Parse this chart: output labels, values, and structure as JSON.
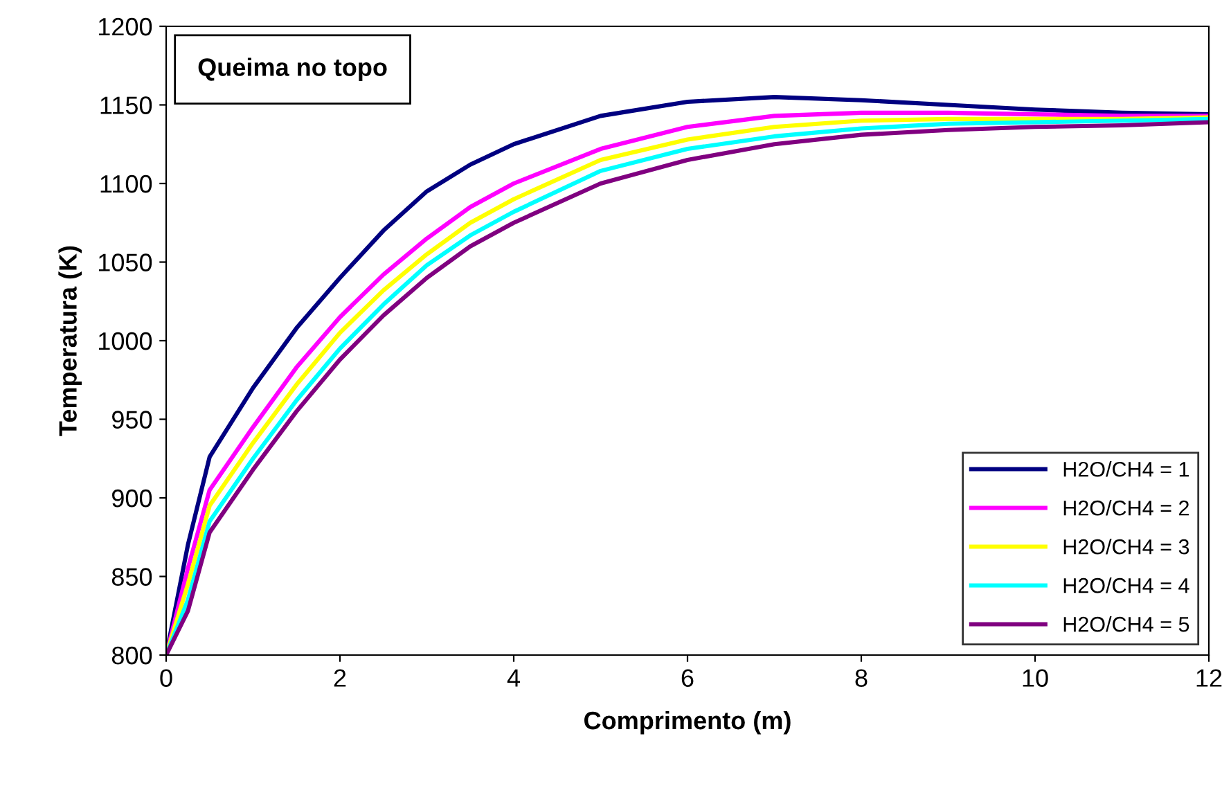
{
  "chart_data": {
    "type": "line",
    "title": "Queima no topo",
    "xlabel": "Comprimento (m)",
    "ylabel": "Temperatura (K)",
    "x": [
      0,
      0.25,
      0.5,
      1,
      1.5,
      2,
      2.5,
      3,
      3.5,
      4,
      5,
      6,
      7,
      8,
      9,
      10,
      11,
      12
    ],
    "series": [
      {
        "name": "H2O/CH4 = 1",
        "color": "#000080",
        "values": [
          800,
          870,
          926,
          970,
          1008,
          1040,
          1070,
          1095,
          1112,
          1125,
          1143,
          1152,
          1155,
          1153,
          1150,
          1147,
          1145,
          1144
        ]
      },
      {
        "name": "H2O/CH4 = 2",
        "color": "#ff00ff",
        "values": [
          800,
          855,
          905,
          945,
          983,
          1015,
          1042,
          1065,
          1085,
          1100,
          1122,
          1136,
          1143,
          1145,
          1145,
          1144,
          1143,
          1143
        ]
      },
      {
        "name": "H2O/CH4 = 3",
        "color": "#ffff00",
        "values": [
          800,
          845,
          895,
          935,
          972,
          1005,
          1032,
          1055,
          1075,
          1090,
          1115,
          1128,
          1136,
          1140,
          1141,
          1141,
          1141,
          1142
        ]
      },
      {
        "name": "H2O/CH4 = 4",
        "color": "#00ffff",
        "values": [
          800,
          835,
          885,
          925,
          962,
          995,
          1023,
          1048,
          1067,
          1082,
          1108,
          1122,
          1130,
          1135,
          1138,
          1139,
          1140,
          1141
        ]
      },
      {
        "name": "H2O/CH4 = 5",
        "color": "#800080",
        "values": [
          800,
          828,
          878,
          918,
          955,
          988,
          1016,
          1040,
          1060,
          1075,
          1100,
          1115,
          1125,
          1131,
          1134,
          1136,
          1137,
          1139
        ]
      }
    ],
    "xlim": [
      0,
      12
    ],
    "xticks": [
      0,
      2,
      4,
      6,
      8,
      10,
      12
    ],
    "ylim": [
      800,
      1200
    ],
    "yticks": [
      800,
      850,
      900,
      950,
      1000,
      1050,
      1100,
      1150,
      1200
    ],
    "grid": false,
    "legend": "bottom right",
    "marker": "none",
    "line_style": "solid"
  }
}
